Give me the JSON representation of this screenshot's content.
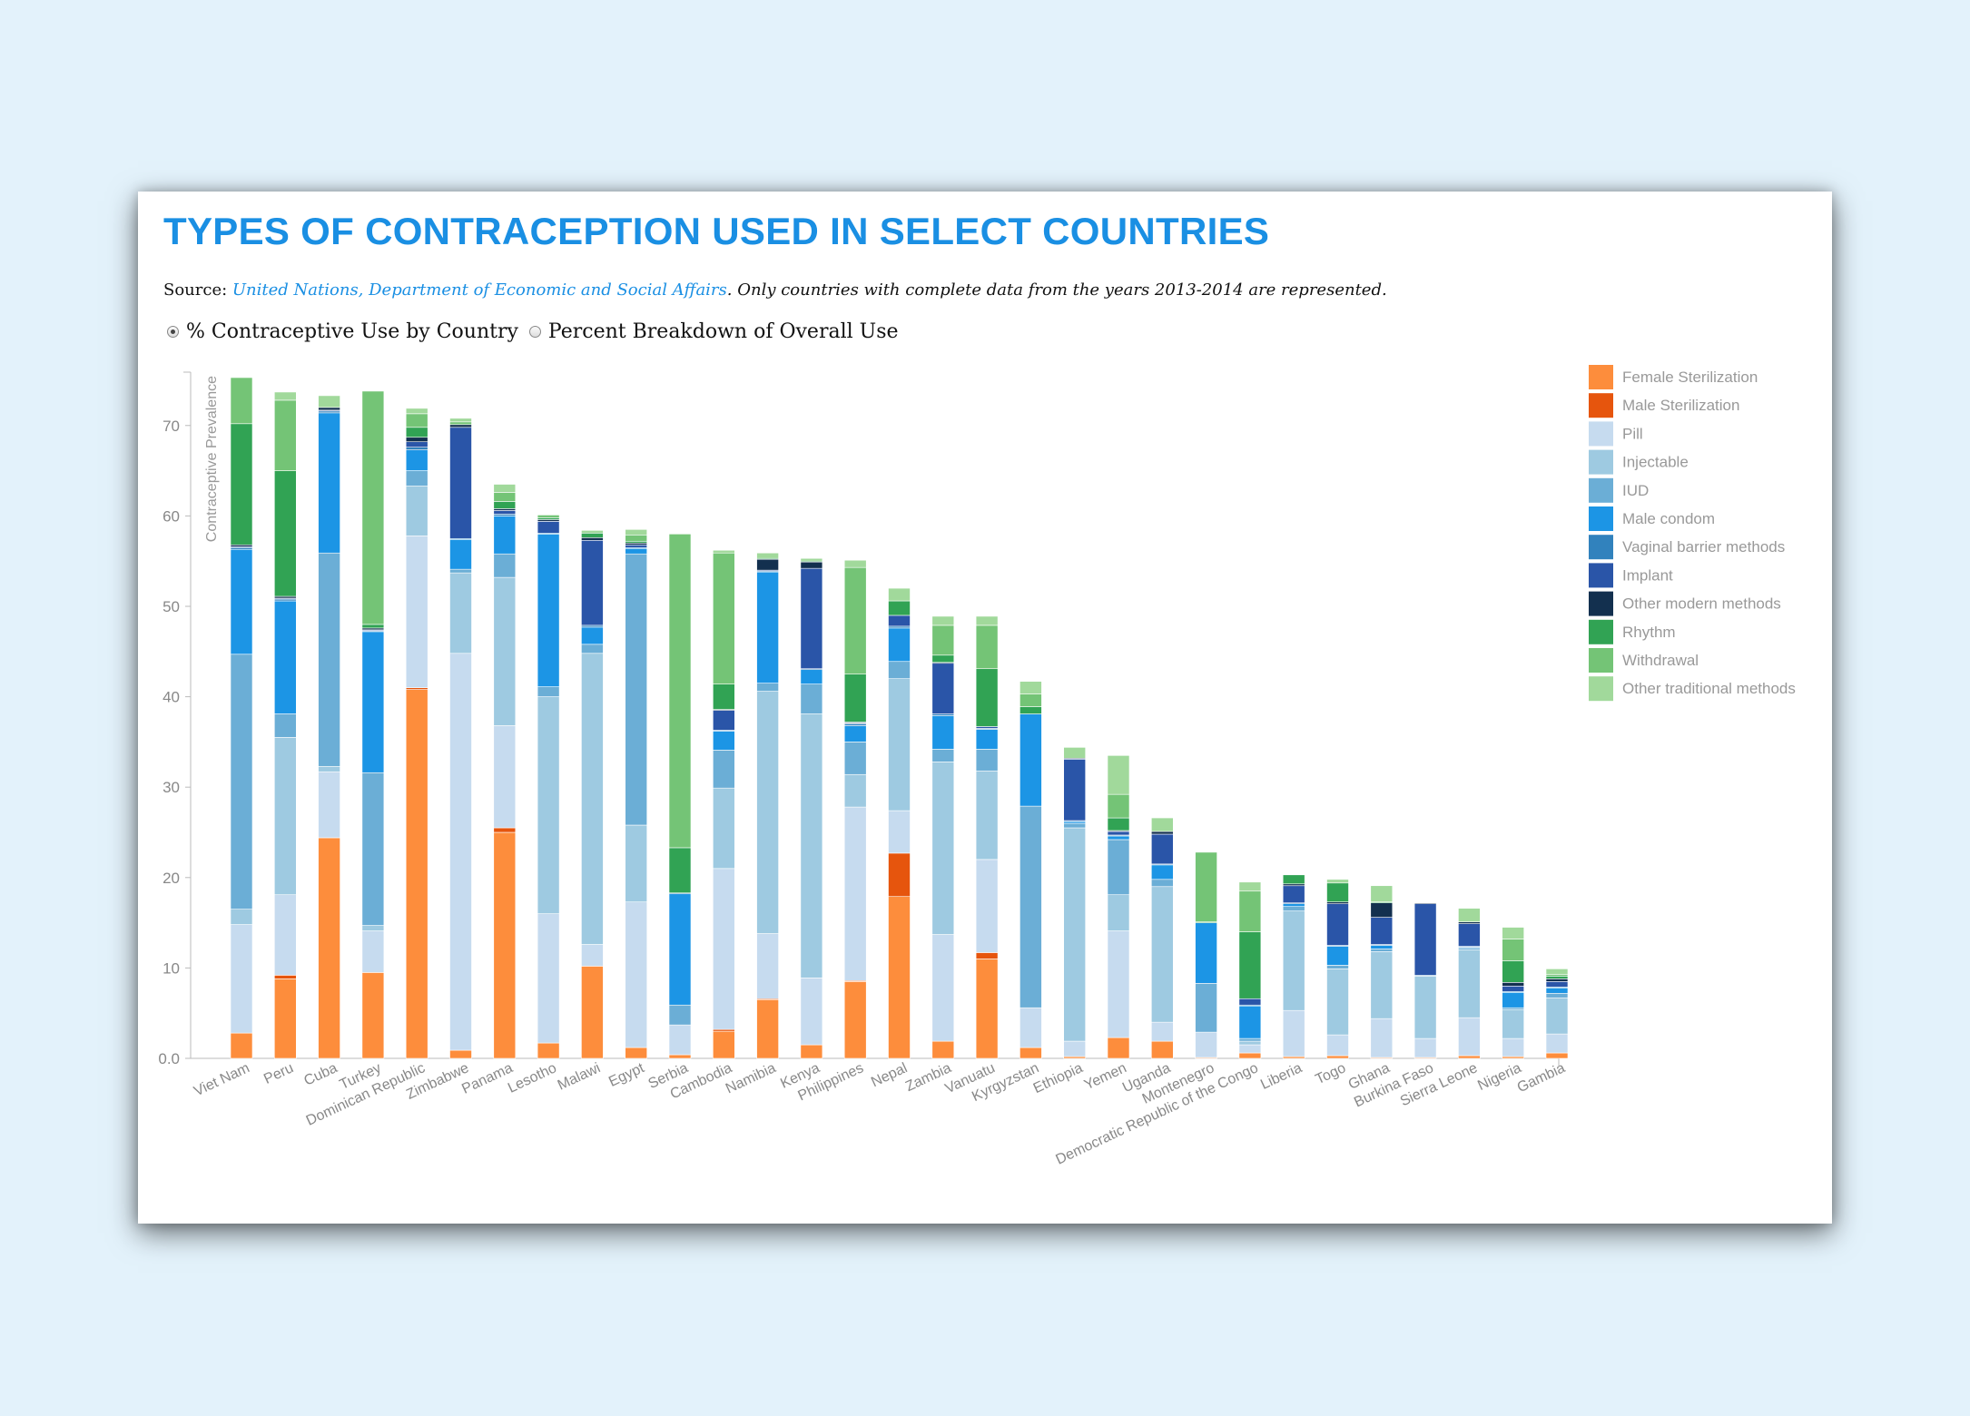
{
  "title": "TYPES OF CONTRACEPTION USED IN SELECT COUNTRIES",
  "source": {
    "label": "Source: ",
    "link_text": "United Nations, Department of Economic and Social Affairs",
    "note": ". Only countries with complete data from the years 2013-2014 are represented."
  },
  "toggles": [
    {
      "label": "% Contraceptive Use by Country",
      "checked": true
    },
    {
      "label": "Percent Breakdown of Overall Use",
      "checked": false
    }
  ],
  "chart_data": {
    "type": "bar",
    "stacked": true,
    "ylabel": "Contraceptive Prevalence",
    "ylim": [
      0,
      75.5
    ],
    "yticks": [
      "0.0",
      "10",
      "20",
      "30",
      "40",
      "50",
      "60",
      "70"
    ],
    "legend_position": "right",
    "categories": [
      "Viet Nam",
      "Peru",
      "Cuba",
      "Turkey",
      "Dominican Republic",
      "Zimbabwe",
      "Panama",
      "Lesotho",
      "Malawi",
      "Egypt",
      "Serbia",
      "Cambodia",
      "Namibia",
      "Kenya",
      "Philippines",
      "Nepal",
      "Zambia",
      "Vanuatu",
      "Kyrgyzstan",
      "Ethiopia",
      "Yemen",
      "Uganda",
      "Montenegro",
      "Democratic Republic of the Congo",
      "Liberia",
      "Togo",
      "Ghana",
      "Burkina Faso",
      "Sierra Leone",
      "Nigeria",
      "Gambia"
    ],
    "series": [
      {
        "name": "Female Sterilization",
        "color": "#fd8d3c",
        "values": [
          2.8,
          8.8,
          24.4,
          9.5,
          40.8,
          0.9,
          25.0,
          1.7,
          10.2,
          1.2,
          0.4,
          3.0,
          6.5,
          1.5,
          8.5,
          17.9,
          1.9,
          11.0,
          1.2,
          0.2,
          2.3,
          1.9,
          0.1,
          0.6,
          0.2,
          0.3,
          0.1,
          0.1,
          0.3,
          0.2,
          0.6
        ]
      },
      {
        "name": "Male Sterilization",
        "color": "#e6550d",
        "values": [
          0,
          0.4,
          0,
          0,
          0.2,
          0,
          0.5,
          0,
          0,
          0,
          0,
          0.2,
          0.1,
          0,
          0.1,
          4.8,
          0,
          0.7,
          0,
          0,
          0,
          0,
          0,
          0,
          0,
          0,
          0,
          0,
          0,
          0,
          0
        ]
      },
      {
        "name": "Pill",
        "color": "#c6dbef",
        "values": [
          12.0,
          8.9,
          7.3,
          4.6,
          16.8,
          43.9,
          11.3,
          14.3,
          2.4,
          16.1,
          3.3,
          17.8,
          7.2,
          7.4,
          19.2,
          4.7,
          11.8,
          10.3,
          4.4,
          1.7,
          11.8,
          2.1,
          2.8,
          0.9,
          5.1,
          2.3,
          4.3,
          2.1,
          4.2,
          2.0,
          2.1
        ]
      },
      {
        "name": "Injectable",
        "color": "#9ecae1",
        "values": [
          1.7,
          17.4,
          0.6,
          0.6,
          5.5,
          8.9,
          16.4,
          24.0,
          32.2,
          8.5,
          0,
          8.9,
          26.8,
          29.2,
          3.6,
          14.6,
          19.1,
          9.8,
          0,
          23.6,
          4.0,
          15.0,
          0,
          0.4,
          11.0,
          7.3,
          7.4,
          6.9,
          7.5,
          3.2,
          4.0
        ]
      },
      {
        "name": "IUD",
        "color": "#6baed6",
        "values": [
          28.2,
          2.6,
          23.6,
          16.9,
          1.7,
          0.4,
          2.6,
          1.1,
          1.0,
          30.0,
          2.2,
          4.2,
          0.9,
          3.3,
          3.6,
          1.9,
          1.4,
          2.4,
          22.3,
          0.5,
          6.1,
          0.8,
          5.4,
          0.3,
          0.5,
          0.4,
          0.3,
          0,
          0.2,
          0.2,
          0.5
        ]
      },
      {
        "name": "Male condom",
        "color": "#1c95e5",
        "values": [
          11.6,
          12.5,
          15.5,
          15.6,
          2.3,
          3.3,
          4.2,
          16.9,
          1.9,
          0.6,
          12.3,
          2.1,
          12.3,
          1.6,
          1.8,
          3.7,
          3.7,
          2.2,
          10.2,
          0.2,
          0.4,
          1.6,
          6.7,
          3.6,
          0.3,
          2.1,
          0.4,
          0,
          0.1,
          1.7,
          0.6
        ]
      },
      {
        "name": "Vaginal barrier methods",
        "color": "#3182bd",
        "values": [
          0.2,
          0.2,
          0.2,
          0.1,
          0.3,
          0.1,
          0.2,
          0.1,
          0.2,
          0.1,
          0.1,
          0.1,
          0.1,
          0.1,
          0.2,
          0.2,
          0.2,
          0.1,
          0,
          0.1,
          0.1,
          0.1,
          0,
          0.1,
          0.1,
          0.1,
          0.1,
          0.1,
          0.1,
          0.1,
          0.1
        ]
      },
      {
        "name": "Implant",
        "color": "#2a55a8",
        "values": [
          0.1,
          0.1,
          0.1,
          0.1,
          0.6,
          12.3,
          0.4,
          1.3,
          9.4,
          0.3,
          0,
          2.2,
          0.1,
          11.1,
          0.1,
          1.2,
          5.6,
          0.2,
          0,
          6.8,
          0.4,
          3.3,
          0,
          0.7,
          1.9,
          4.6,
          3.0,
          7.9,
          2.5,
          0.6,
          0.6
        ]
      },
      {
        "name": "Other modern methods",
        "color": "#13304f",
        "values": [
          0.2,
          0.2,
          0.3,
          0.2,
          0.5,
          0.3,
          0.2,
          0.2,
          0.3,
          0.2,
          0,
          0.1,
          1.2,
          0.7,
          0.1,
          0,
          0.1,
          0,
          0,
          0.1,
          0.1,
          0.3,
          0,
          0,
          0.2,
          0.2,
          1.6,
          0.1,
          0.2,
          0.4,
          0.3
        ]
      },
      {
        "name": "Rhythm",
        "color": "#31a354",
        "values": [
          13.4,
          13.9,
          0,
          0.4,
          1.1,
          0,
          0.8,
          0.2,
          0.5,
          0.2,
          5.0,
          2.8,
          0.1,
          0.1,
          5.3,
          1.6,
          0.8,
          6.4,
          0.8,
          0,
          1.4,
          0,
          0.1,
          7.4,
          1.0,
          2.1,
          0.1,
          0,
          0,
          2.4,
          0.3
        ]
      },
      {
        "name": "Withdrawal",
        "color": "#74c476",
        "values": [
          5.1,
          7.8,
          0,
          25.8,
          1.5,
          0.3,
          1.0,
          0.3,
          0,
          0.7,
          34.7,
          14.5,
          0,
          0,
          11.8,
          0,
          3.3,
          4.8,
          1.4,
          0,
          2.6,
          0,
          7.7,
          4.5,
          0,
          0,
          0,
          0,
          0,
          2.4,
          0.2
        ]
      },
      {
        "name": "Other traditional methods",
        "color": "#a1d99b",
        "values": [
          0,
          0.9,
          1.3,
          0,
          0.6,
          0.4,
          0.9,
          0,
          0.3,
          0.6,
          0,
          0.3,
          0.6,
          0.3,
          0.8,
          1.4,
          1.0,
          1.0,
          1.4,
          1.2,
          4.3,
          1.5,
          0,
          1.0,
          0,
          0.4,
          1.8,
          0,
          1.5,
          1.3,
          0.6
        ]
      }
    ]
  }
}
